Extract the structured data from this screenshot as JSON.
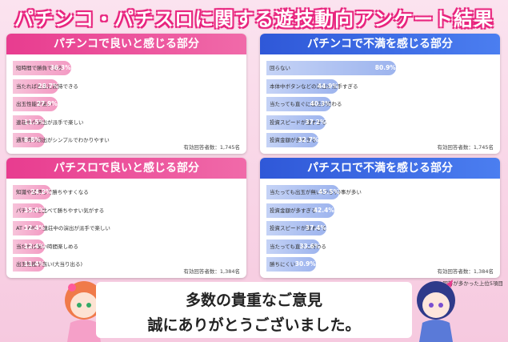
{
  "title": "パチンコ・パチスロに関する遊技動向アンケート結果",
  "colors": {
    "pink": "#e83c8f",
    "blue": "#2f58d8"
  },
  "chart_data": [
    {
      "type": "bar",
      "title": "パチンコで良いと感じる部分",
      "categories": [
        "短時間で勝負できる",
        "当たれば出玉に期待できる",
        "出玉性能が高い",
        "連荘中の演出が派手で楽しい",
        "通常時の演出がシンプルでわかりやすい"
      ],
      "values": [
        36.3,
        28.7,
        27.9,
        11.5,
        8.8
      ],
      "respondents": "有効回答者数：1,745名"
    },
    {
      "type": "bar",
      "title": "パチンコで不満を感じる部分",
      "categories": [
        "回らない",
        "本体中ボタンなどの演出が派手すぎる",
        "当たっても直ぐに連荘が終わる",
        "投資スピードが速すぎる",
        "投資金額が多すぎる"
      ],
      "values": [
        80.9,
        44.9,
        40.3,
        37.2,
        32.7
      ],
      "respondents": "有効回答者数：1,745名"
    },
    {
      "type": "bar",
      "title": "パチスロで良いと感じる部分",
      "categories": [
        "知識や目押しで勝ちやすくなる",
        "パチンコと比べて勝ちやすい気がする",
        "AT・ART・連荘中の演出が派手で楽しい",
        "当たれば長い時間楽しめる",
        "出玉性能が高い(大当り出る)"
      ],
      "values": [
        24.2,
        15.0,
        12.4,
        12.4,
        11.4
      ],
      "respondents": "有効回答者数：1,384名"
    },
    {
      "type": "bar",
      "title": "パチスロで不満を感じる部分",
      "categories": [
        "当たっても出玉が無い(少ない)事が多い",
        "投資金額が多すぎる",
        "投資スピードが速すぎる",
        "当たっても直ぐに終わる",
        "勝ちにくい"
      ],
      "values": [
        45.5,
        42.4,
        37.4,
        33.6,
        30.9
      ],
      "respondents": "有効回答者数：1,384名"
    }
  ],
  "note": "※回答が多かった上位5項目",
  "message": {
    "line1": "多数の貴重なご意見",
    "line2": "誠にありがとうございました。"
  }
}
